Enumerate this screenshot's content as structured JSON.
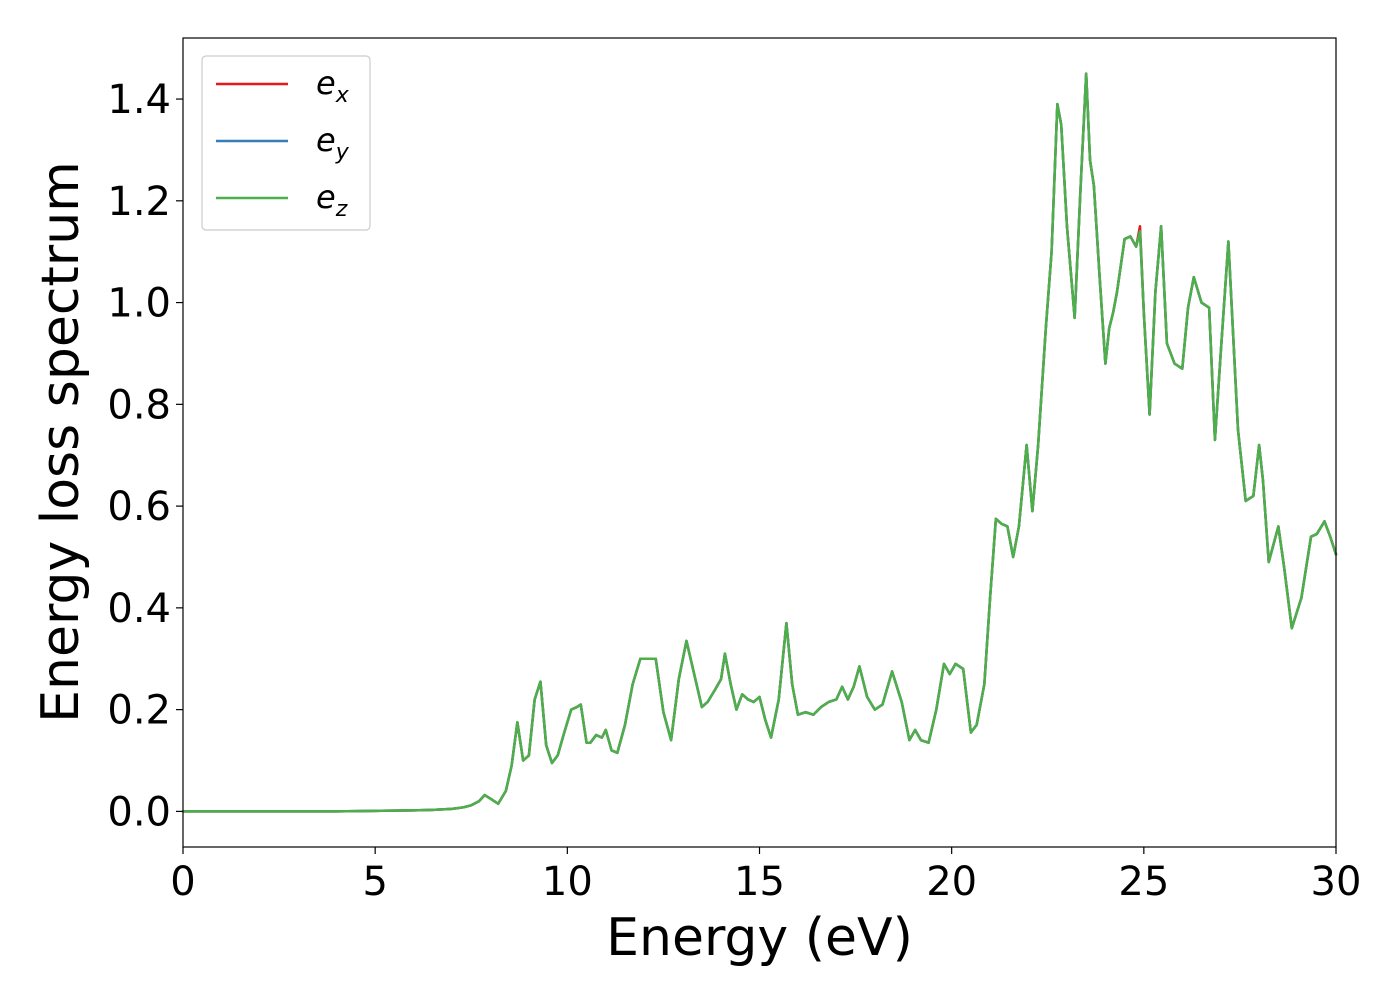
{
  "chart_data": {
    "type": "line",
    "xlabel": "Energy (eV)",
    "ylabel": "Energy loss spectrum",
    "xlim": [
      0,
      30
    ],
    "ylim": [
      -0.07,
      1.52
    ],
    "xticks": [
      0,
      5,
      10,
      15,
      20,
      25,
      30
    ],
    "xtick_labels": [
      "0",
      "5",
      "10",
      "15",
      "20",
      "25",
      "30"
    ],
    "yticks": [
      0.0,
      0.2,
      0.4,
      0.6,
      0.8,
      1.0,
      1.2,
      1.4
    ],
    "ytick_labels": [
      "0.0",
      "0.2",
      "0.4",
      "0.6",
      "0.8",
      "1.0",
      "1.2",
      "1.4"
    ],
    "grid": false,
    "legend_position": "top-left",
    "x": [
      0,
      1,
      2,
      3,
      4,
      5,
      6,
      6.5,
      7,
      7.3,
      7.5,
      7.7,
      7.85,
      8.0,
      8.2,
      8.4,
      8.55,
      8.7,
      8.85,
      9.0,
      9.15,
      9.3,
      9.45,
      9.6,
      9.75,
      9.9,
      10.1,
      10.25,
      10.35,
      10.5,
      10.6,
      10.75,
      10.9,
      11.0,
      11.15,
      11.3,
      11.5,
      11.7,
      11.9,
      12.1,
      12.3,
      12.5,
      12.7,
      12.9,
      13.1,
      13.3,
      13.5,
      13.65,
      13.85,
      14.0,
      14.1,
      14.25,
      14.4,
      14.55,
      14.7,
      14.85,
      15.0,
      15.15,
      15.3,
      15.5,
      15.7,
      15.85,
      16.0,
      16.2,
      16.4,
      16.6,
      16.8,
      17.0,
      17.15,
      17.3,
      17.45,
      17.6,
      17.8,
      18.0,
      18.2,
      18.45,
      18.7,
      18.9,
      19.05,
      19.2,
      19.4,
      19.6,
      19.8,
      19.95,
      20.1,
      20.3,
      20.5,
      20.65,
      20.85,
      21.0,
      21.15,
      21.3,
      21.45,
      21.6,
      21.75,
      21.95,
      22.1,
      22.25,
      22.45,
      22.6,
      22.75,
      22.85,
      23.0,
      23.2,
      23.35,
      23.5,
      23.6,
      23.7,
      23.85,
      24.0,
      24.1,
      24.2,
      24.3,
      24.5,
      24.65,
      24.8,
      24.9,
      25.0,
      25.15,
      25.3,
      25.45,
      25.6,
      25.8,
      26.0,
      26.15,
      26.3,
      26.5,
      26.7,
      26.85,
      27.0,
      27.2,
      27.45,
      27.65,
      27.85,
      28.0,
      28.1,
      28.25,
      28.5,
      28.65,
      28.85,
      29.1,
      29.35,
      29.5,
      29.7,
      29.85,
      30.0
    ],
    "series": [
      {
        "name": "e",
        "subscript": "x",
        "color": "#e41a1c",
        "values": [
          0,
          0,
          0,
          0,
          0,
          0.001,
          0.002,
          0.003,
          0.005,
          0.008,
          0.012,
          0.02,
          0.032,
          0.025,
          0.015,
          0.04,
          0.09,
          0.175,
          0.1,
          0.11,
          0.22,
          0.255,
          0.13,
          0.095,
          0.11,
          0.15,
          0.2,
          0.205,
          0.21,
          0.135,
          0.135,
          0.15,
          0.145,
          0.16,
          0.12,
          0.115,
          0.17,
          0.25,
          0.3,
          0.3,
          0.3,
          0.195,
          0.14,
          0.26,
          0.335,
          0.27,
          0.205,
          0.215,
          0.24,
          0.26,
          0.31,
          0.25,
          0.2,
          0.23,
          0.22,
          0.215,
          0.225,
          0.18,
          0.145,
          0.22,
          0.37,
          0.25,
          0.19,
          0.195,
          0.19,
          0.205,
          0.215,
          0.22,
          0.245,
          0.22,
          0.245,
          0.285,
          0.225,
          0.2,
          0.21,
          0.275,
          0.215,
          0.14,
          0.16,
          0.14,
          0.135,
          0.2,
          0.29,
          0.27,
          0.29,
          0.28,
          0.155,
          0.17,
          0.25,
          0.42,
          0.575,
          0.565,
          0.56,
          0.5,
          0.56,
          0.72,
          0.59,
          0.72,
          0.95,
          1.1,
          1.39,
          1.35,
          1.15,
          0.97,
          1.22,
          1.45,
          1.28,
          1.23,
          1.05,
          0.88,
          0.95,
          0.98,
          1.02,
          1.125,
          1.13,
          1.11,
          1.15,
          0.98,
          0.78,
          1.02,
          1.15,
          0.92,
          0.88,
          0.87,
          0.99,
          1.05,
          1.0,
          0.99,
          0.73,
          0.9,
          1.12,
          0.75,
          0.61,
          0.62,
          0.72,
          0.65,
          0.49,
          0.56,
          0.48,
          0.36,
          0.42,
          0.54,
          0.545,
          0.57,
          0.54,
          0.505
        ]
      },
      {
        "name": "e",
        "subscript": "y",
        "color": "#377eb8",
        "values": [
          0,
          0,
          0,
          0,
          0,
          0.001,
          0.002,
          0.003,
          0.005,
          0.008,
          0.012,
          0.02,
          0.032,
          0.025,
          0.015,
          0.04,
          0.09,
          0.175,
          0.1,
          0.11,
          0.22,
          0.255,
          0.13,
          0.095,
          0.11,
          0.15,
          0.2,
          0.205,
          0.21,
          0.135,
          0.135,
          0.15,
          0.145,
          0.16,
          0.12,
          0.115,
          0.17,
          0.25,
          0.3,
          0.3,
          0.3,
          0.195,
          0.14,
          0.26,
          0.335,
          0.27,
          0.205,
          0.215,
          0.24,
          0.26,
          0.31,
          0.25,
          0.2,
          0.23,
          0.22,
          0.215,
          0.225,
          0.18,
          0.145,
          0.22,
          0.37,
          0.25,
          0.19,
          0.195,
          0.19,
          0.205,
          0.215,
          0.22,
          0.245,
          0.22,
          0.245,
          0.285,
          0.225,
          0.2,
          0.21,
          0.275,
          0.215,
          0.14,
          0.16,
          0.14,
          0.135,
          0.2,
          0.29,
          0.27,
          0.29,
          0.28,
          0.155,
          0.17,
          0.25,
          0.42,
          0.575,
          0.565,
          0.56,
          0.5,
          0.56,
          0.72,
          0.59,
          0.72,
          0.95,
          1.1,
          1.39,
          1.35,
          1.15,
          0.97,
          1.22,
          1.45,
          1.28,
          1.23,
          1.05,
          0.88,
          0.95,
          0.98,
          1.02,
          1.125,
          1.13,
          1.11,
          1.14,
          0.98,
          0.78,
          1.02,
          1.15,
          0.92,
          0.88,
          0.87,
          0.99,
          1.05,
          1.0,
          0.99,
          0.73,
          0.9,
          1.12,
          0.75,
          0.61,
          0.62,
          0.72,
          0.65,
          0.49,
          0.56,
          0.48,
          0.36,
          0.42,
          0.54,
          0.545,
          0.57,
          0.54,
          0.505
        ]
      },
      {
        "name": "e",
        "subscript": "z",
        "color": "#4daf4a",
        "values": [
          0,
          0,
          0,
          0,
          0,
          0.001,
          0.002,
          0.003,
          0.005,
          0.008,
          0.012,
          0.02,
          0.032,
          0.025,
          0.015,
          0.04,
          0.09,
          0.175,
          0.1,
          0.11,
          0.22,
          0.255,
          0.13,
          0.095,
          0.11,
          0.15,
          0.2,
          0.205,
          0.21,
          0.135,
          0.135,
          0.15,
          0.145,
          0.16,
          0.12,
          0.115,
          0.17,
          0.25,
          0.3,
          0.3,
          0.3,
          0.195,
          0.14,
          0.26,
          0.335,
          0.27,
          0.205,
          0.215,
          0.24,
          0.26,
          0.31,
          0.25,
          0.2,
          0.23,
          0.22,
          0.215,
          0.225,
          0.18,
          0.145,
          0.22,
          0.37,
          0.25,
          0.19,
          0.195,
          0.19,
          0.205,
          0.215,
          0.22,
          0.245,
          0.22,
          0.245,
          0.285,
          0.225,
          0.2,
          0.21,
          0.275,
          0.215,
          0.14,
          0.16,
          0.14,
          0.135,
          0.2,
          0.29,
          0.27,
          0.29,
          0.28,
          0.155,
          0.17,
          0.25,
          0.42,
          0.575,
          0.565,
          0.56,
          0.5,
          0.56,
          0.72,
          0.59,
          0.72,
          0.95,
          1.1,
          1.39,
          1.35,
          1.15,
          0.97,
          1.22,
          1.45,
          1.28,
          1.23,
          1.05,
          0.88,
          0.95,
          0.98,
          1.02,
          1.125,
          1.13,
          1.11,
          1.14,
          0.98,
          0.78,
          1.02,
          1.15,
          0.92,
          0.88,
          0.87,
          0.99,
          1.05,
          1.0,
          0.99,
          0.73,
          0.9,
          1.12,
          0.75,
          0.61,
          0.62,
          0.72,
          0.65,
          0.49,
          0.56,
          0.48,
          0.36,
          0.42,
          0.54,
          0.545,
          0.57,
          0.54,
          0.505
        ]
      }
    ]
  }
}
